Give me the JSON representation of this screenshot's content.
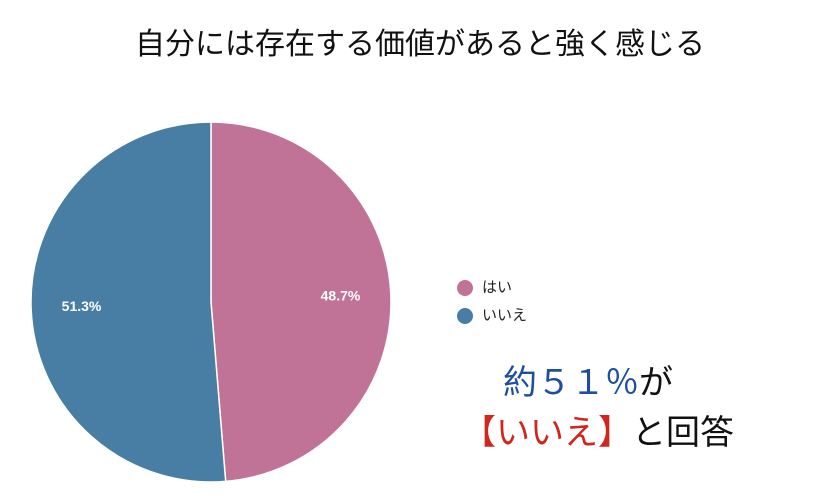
{
  "chart_data": {
    "type": "pie",
    "title": "自分には存在する価値があると強く感じる",
    "categories": [
      "はい",
      "いいえ"
    ],
    "values": [
      48.7,
      51.3
    ],
    "value_labels": [
      "48.7%",
      "51.3%"
    ],
    "colors": [
      "#c07396",
      "#487ea3"
    ],
    "legend": "right",
    "annotation": [
      [
        {
          "text": "約５１％",
          "color": "#1f4e9c"
        },
        {
          "text": "が",
          "color": "#111111"
        }
      ],
      [
        {
          "text": "【いいえ】",
          "color": "#d0261f"
        },
        {
          "text": "と回答",
          "color": "#111111"
        }
      ]
    ]
  }
}
